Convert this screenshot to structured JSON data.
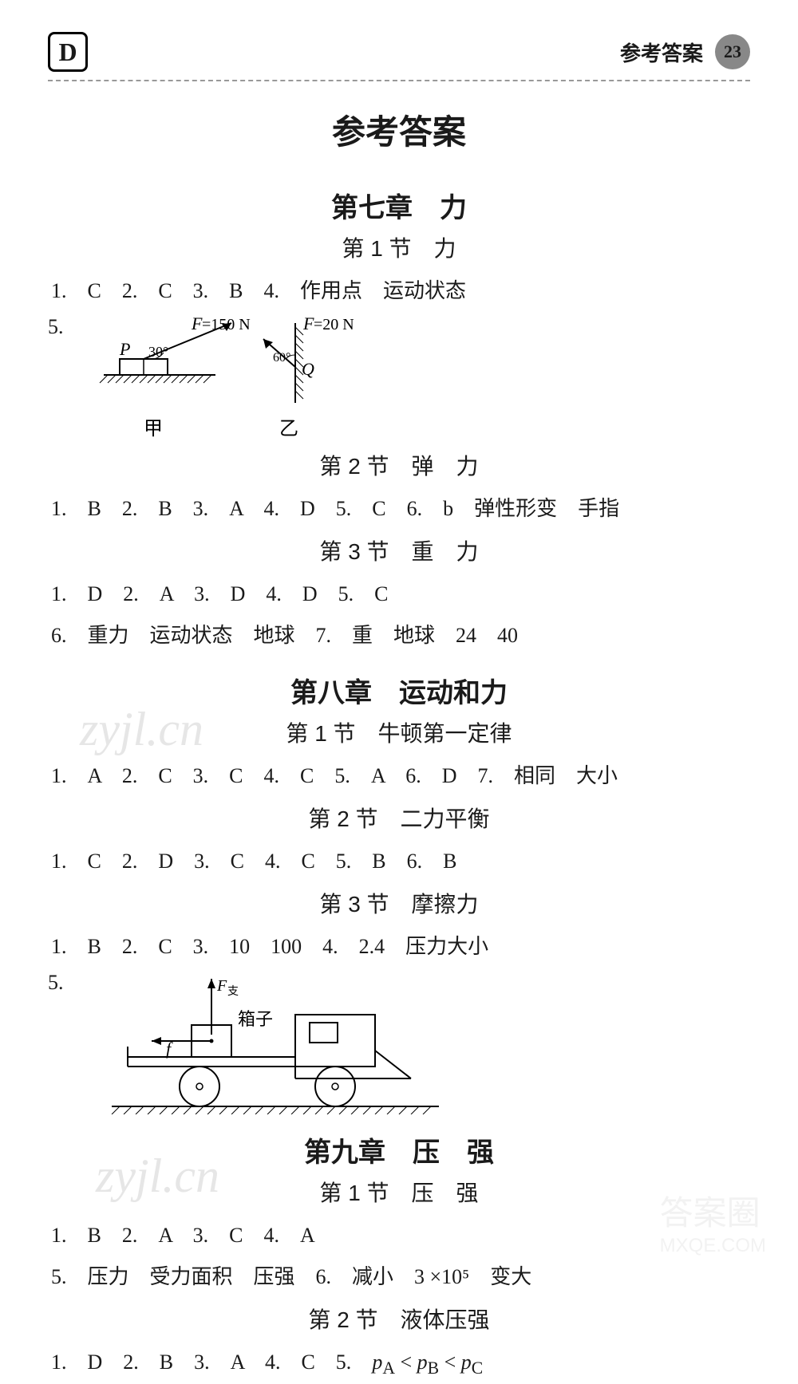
{
  "header": {
    "logo": "D",
    "title": "参考答案",
    "page": "23"
  },
  "mainTitle": "参考答案",
  "chapters": [
    {
      "title": "第七章　力",
      "sections": [
        {
          "title": "第 1 节　力",
          "lines": [
            "1.　C　2.　C　3.　B　4.　作用点　运动状态"
          ],
          "diagram_label": "5.",
          "diagram_caption_left": "甲",
          "diagram_caption_right": "乙",
          "force_left_label": "F=150 N",
          "force_left_point": "P",
          "force_left_angle": "30°",
          "force_right_label": "F=20 N",
          "force_right_angle": "60°",
          "force_right_point": "Q"
        },
        {
          "title": "第 2 节　弹　力",
          "lines": [
            "1.　B　2.　B　3.　A　4.　D　5.　C　6.　b　弹性形变　手指"
          ]
        },
        {
          "title": "第 3 节　重　力",
          "lines": [
            "1.　D　2.　A　3.　D　4.　D　5.　C",
            "6.　重力　运动状态　地球　7.　重　地球　24　40"
          ]
        }
      ]
    },
    {
      "title": "第八章　运动和力",
      "sections": [
        {
          "title": "第 1 节　牛顿第一定律",
          "lines": [
            "1.　A　2.　C　3.　C　4.　C　5.　A　6.　D　7.　相同　大小"
          ]
        },
        {
          "title": "第 2 节　二力平衡",
          "lines": [
            "1.　C　2.　D　3.　C　4.　C　5.　B　6.　B"
          ]
        },
        {
          "title": "第 3 节　摩擦力",
          "lines": [
            "1.　B　2.　C　3.　10　100　4.　2.4　压力大小"
          ],
          "diagram_label": "5.",
          "truck_box_label": "箱子",
          "truck_f_label": "f",
          "truck_F_label": "F支"
        }
      ]
    },
    {
      "title": "第九章　压　强",
      "sections": [
        {
          "title": "第 1 节　压　强",
          "lines": [
            "1.　B　2.　A　3.　C　4.　A",
            "5.　压力　受力面积　压强　6.　减小　3 ×10⁵　变大"
          ]
        },
        {
          "title": "第 2 节　液体压强",
          "lines_html": "1.　D　2.　B　3.　A　4.　C　5.　<span class='italic'>p</span><sub>A</sub> &lt; <span class='italic'>p</span><sub>B</sub> &lt; <span class='italic'>p</span><sub>C</sub>"
        }
      ]
    }
  ],
  "watermarks": {
    "zyjl": "zyjl.cn",
    "bottom1": "答案圈",
    "bottom2": "MXQE.COM"
  }
}
